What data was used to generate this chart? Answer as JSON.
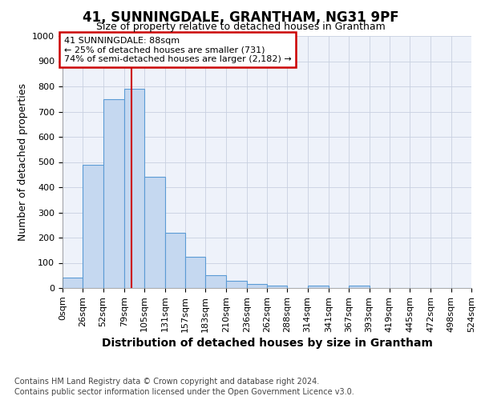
{
  "title1": "41, SUNNINGDALE, GRANTHAM, NG31 9PF",
  "title2": "Size of property relative to detached houses in Grantham",
  "xlabel": "Distribution of detached houses by size in Grantham",
  "ylabel": "Number of detached properties",
  "footer1": "Contains HM Land Registry data © Crown copyright and database right 2024.",
  "footer2": "Contains public sector information licensed under the Open Government Licence v3.0.",
  "bin_edges": [
    0,
    26,
    52,
    79,
    105,
    131,
    157,
    183,
    210,
    236,
    262,
    288,
    314,
    341,
    367,
    393,
    419,
    445,
    472,
    498,
    524
  ],
  "bar_values": [
    40,
    490,
    750,
    790,
    440,
    220,
    125,
    50,
    27,
    15,
    10,
    0,
    8,
    0,
    8,
    0,
    0,
    0,
    0,
    0
  ],
  "bar_color": "#c5d8f0",
  "bar_edge_color": "#5b9bd5",
  "property_size": 88,
  "annotation_line1": "41 SUNNINGDALE: 88sqm",
  "annotation_line2": "← 25% of detached houses are smaller (731)",
  "annotation_line3": "74% of semi-detached houses are larger (2,182) →",
  "annotation_box_color": "#ffffff",
  "annotation_box_edge": "#cc0000",
  "vline_color": "#cc0000",
  "ylim": [
    0,
    1000
  ],
  "yticks": [
    0,
    100,
    200,
    300,
    400,
    500,
    600,
    700,
    800,
    900,
    1000
  ],
  "grid_color": "#c8d0e0",
  "background_color": "#eef2fa",
  "title1_fontsize": 12,
  "title2_fontsize": 9,
  "ylabel_fontsize": 9,
  "xlabel_fontsize": 10,
  "tick_fontsize": 8,
  "footer_fontsize": 7
}
